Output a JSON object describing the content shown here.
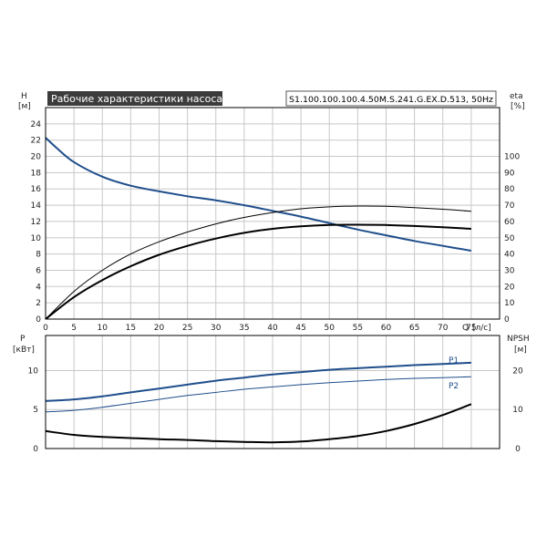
{
  "chart_data": [
    {
      "type": "line",
      "title": "Рабочие характеристики насоса",
      "model_label": "S1.100.100.100.4.50M.S.241.G.EX.D.513, 50Hz",
      "ylabel": "H",
      "ylabel_unit": "[м]",
      "y2label": "eta",
      "y2label_unit": "[%]",
      "xlabel": "Q",
      "xlabel_unit": "[л/с]",
      "xlim": [
        0,
        80
      ],
      "ylim": [
        0,
        26
      ],
      "y2lim": [
        0,
        130
      ],
      "xticks": [
        0,
        5,
        10,
        15,
        20,
        25,
        30,
        35,
        40,
        45,
        50,
        55,
        60,
        65,
        70,
        75
      ],
      "yticks": [
        0,
        2,
        4,
        6,
        8,
        10,
        12,
        14,
        16,
        18,
        20,
        22,
        24
      ],
      "y2ticks": [
        0,
        10,
        20,
        30,
        40,
        50,
        60,
        70,
        80,
        90,
        100
      ],
      "grid": true,
      "series": [
        {
          "axis": "left",
          "color": "#1f4e8c",
          "width": 2,
          "x": [
            0,
            2,
            5,
            10,
            15,
            20,
            25,
            30,
            35,
            40,
            45,
            50,
            55,
            60,
            65,
            70,
            75
          ],
          "y": [
            22.3,
            21.0,
            19.3,
            17.5,
            16.4,
            15.7,
            15.1,
            14.6,
            14.0,
            13.3,
            12.6,
            11.8,
            11.0,
            10.3,
            9.6,
            9.0,
            8.4
          ]
        },
        {
          "axis": "right",
          "color": "#000000",
          "width": 1,
          "x": [
            0,
            5,
            10,
            15,
            20,
            25,
            30,
            35,
            40,
            45,
            50,
            55,
            60,
            65,
            70,
            75
          ],
          "y": [
            0,
            17,
            30,
            40,
            47.5,
            53.5,
            58.5,
            62.5,
            65.5,
            67.8,
            69.0,
            69.5,
            69.3,
            68.5,
            67.5,
            66.3
          ]
        },
        {
          "axis": "right",
          "color": "#000000",
          "width": 2,
          "x": [
            0,
            5,
            10,
            15,
            20,
            25,
            30,
            35,
            40,
            45,
            50,
            55,
            60,
            65,
            70,
            75
          ],
          "y": [
            0,
            13.5,
            24,
            32.5,
            39.5,
            45,
            49.5,
            53,
            55.5,
            57,
            57.8,
            58,
            57.8,
            57.2,
            56.5,
            55.5
          ]
        }
      ]
    },
    {
      "type": "line",
      "ylabel": "P",
      "ylabel_unit": "[кВт]",
      "y2label": "NPSH",
      "y2label_unit": "[м]",
      "xlim": [
        0,
        80
      ],
      "ylim": [
        0,
        14.5
      ],
      "y2lim": [
        0,
        29
      ],
      "yticks": [
        0,
        5,
        10
      ],
      "y2ticks": [
        0,
        10,
        20
      ],
      "grid": true,
      "series": [
        {
          "name": "P1",
          "axis": "left",
          "color": "#1f4e8c",
          "width": 2,
          "x": [
            0,
            5,
            10,
            15,
            20,
            25,
            30,
            35,
            40,
            45,
            50,
            55,
            60,
            65,
            70,
            75
          ],
          "y": [
            6.1,
            6.3,
            6.7,
            7.2,
            7.7,
            8.2,
            8.7,
            9.1,
            9.5,
            9.8,
            10.1,
            10.3,
            10.5,
            10.7,
            10.85,
            11.0
          ]
        },
        {
          "name": "P2",
          "axis": "left",
          "color": "#1f4e8c",
          "width": 1,
          "x": [
            0,
            5,
            10,
            15,
            20,
            25,
            30,
            35,
            40,
            45,
            50,
            55,
            60,
            65,
            70,
            75
          ],
          "y": [
            4.7,
            4.9,
            5.3,
            5.8,
            6.3,
            6.8,
            7.2,
            7.6,
            7.9,
            8.2,
            8.45,
            8.65,
            8.85,
            9.0,
            9.1,
            9.2
          ]
        },
        {
          "axis": "right",
          "color": "#000000",
          "width": 2,
          "x": [
            0,
            5,
            10,
            15,
            20,
            25,
            30,
            35,
            40,
            45,
            50,
            55,
            60,
            65,
            70,
            75
          ],
          "y": [
            4.5,
            3.5,
            3.0,
            2.7,
            2.4,
            2.2,
            1.9,
            1.7,
            1.6,
            1.8,
            2.4,
            3.2,
            4.5,
            6.3,
            8.6,
            11.4
          ]
        }
      ]
    }
  ]
}
